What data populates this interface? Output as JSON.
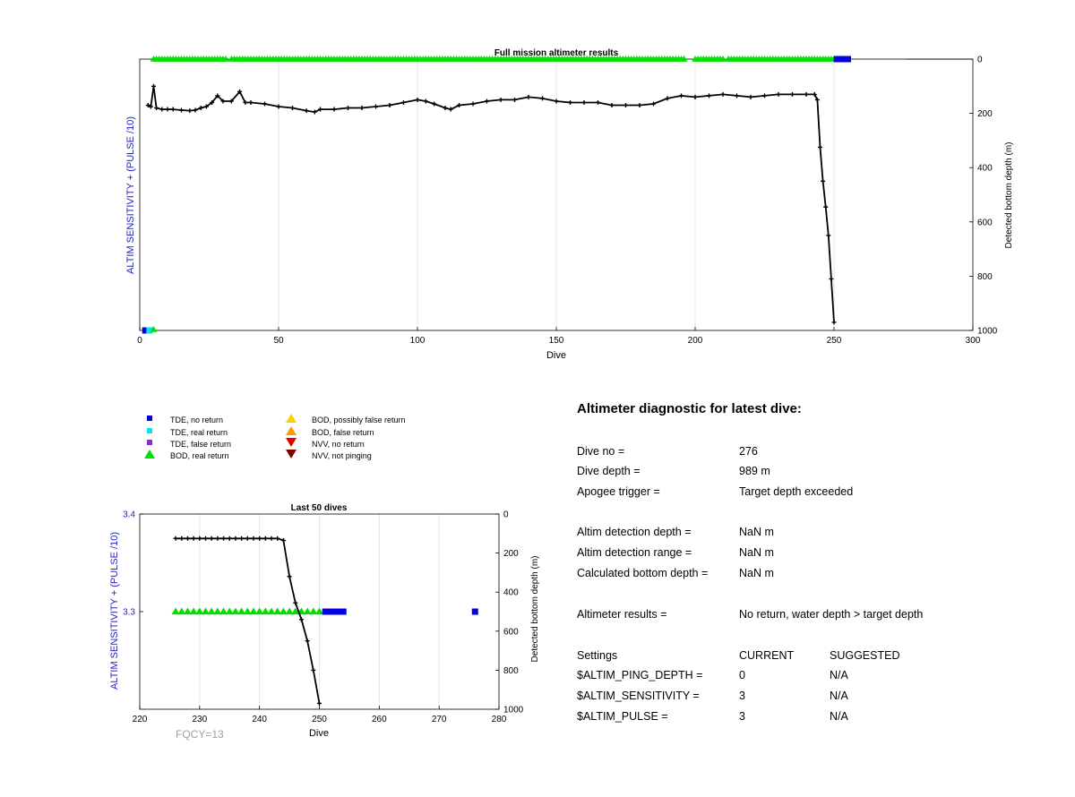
{
  "chart_data": [
    {
      "type": "line",
      "title": "Full mission altimeter results",
      "xlabel": "Dive",
      "ylabel_left": "ALTIM SENSITIVITY + (PULSE /10)",
      "ylabel_right": "Detected bottom depth (m)",
      "xlim": [
        0,
        300
      ],
      "xticks": [
        "0",
        "50",
        "100",
        "150",
        "200",
        "250",
        "300"
      ],
      "xtick_values": [
        0,
        50,
        100,
        150,
        200,
        250,
        300
      ],
      "y_right_lim": [
        0,
        1000
      ],
      "y_right_reversed": true,
      "y_right_ticks": [
        "0",
        "200",
        "400",
        "600",
        "800",
        "1000"
      ],
      "y_right_tick_values": [
        0,
        200,
        400,
        600,
        800,
        1000
      ],
      "grid_x": true,
      "bottom_depth": {
        "x": [
          3,
          4,
          5,
          6,
          8,
          10,
          12,
          15,
          18,
          20,
          22,
          24,
          26,
          28,
          30,
          33,
          36,
          38,
          40,
          45,
          50,
          55,
          60,
          63,
          65,
          70,
          75,
          80,
          85,
          90,
          95,
          100,
          103,
          106,
          110,
          112,
          115,
          120,
          125,
          130,
          135,
          140,
          145,
          150,
          155,
          160,
          165,
          170,
          175,
          180,
          185,
          190,
          195,
          200,
          205,
          210,
          215,
          220,
          225,
          230,
          235,
          240,
          243,
          244,
          245,
          246,
          247,
          248,
          249,
          250
        ],
        "y": [
          170,
          175,
          100,
          180,
          185,
          185,
          185,
          188,
          190,
          188,
          180,
          175,
          160,
          135,
          155,
          155,
          120,
          160,
          160,
          165,
          175,
          180,
          190,
          195,
          185,
          185,
          180,
          180,
          175,
          170,
          160,
          150,
          155,
          165,
          180,
          185,
          170,
          165,
          155,
          150,
          150,
          140,
          145,
          155,
          160,
          160,
          160,
          170,
          170,
          170,
          165,
          145,
          135,
          140,
          135,
          130,
          135,
          140,
          135,
          130,
          130,
          130,
          130,
          150,
          325,
          450,
          545,
          650,
          810,
          970
        ]
      },
      "tde_no_return_x": [
        2,
        251,
        252,
        253,
        254,
        255
      ],
      "tde_real_return_x": [
        3.5
      ],
      "bod_real_return_x": [
        5,
        6,
        7,
        8,
        9,
        10,
        11,
        12,
        13,
        14,
        15,
        16,
        17,
        18,
        19,
        20,
        21,
        22,
        23,
        24,
        25,
        26,
        27,
        28,
        29,
        30,
        31,
        33,
        34,
        35,
        36,
        37,
        38,
        39,
        40,
        41,
        42,
        43,
        44,
        45,
        46,
        47,
        48,
        49,
        50,
        51,
        52,
        53,
        54,
        55,
        56,
        57,
        58,
        59,
        60,
        61,
        62,
        63,
        64,
        65,
        66,
        67,
        68,
        69,
        70,
        71,
        72,
        73,
        74,
        75,
        76,
        77,
        78,
        79,
        80,
        81,
        82,
        83,
        84,
        85,
        86,
        87,
        88,
        89,
        90,
        91,
        92,
        93,
        94,
        95,
        96,
        97,
        98,
        99,
        100,
        101,
        102,
        103,
        104,
        105,
        106,
        107,
        108,
        109,
        110,
        111,
        112,
        113,
        114,
        115,
        116,
        117,
        118,
        119,
        120,
        121,
        122,
        123,
        124,
        125,
        126,
        127,
        128,
        129,
        130,
        131,
        132,
        133,
        134,
        135,
        136,
        137,
        138,
        139,
        140,
        141,
        142,
        143,
        144,
        145,
        146,
        147,
        148,
        149,
        150,
        151,
        152,
        153,
        154,
        155,
        156,
        157,
        158,
        159,
        160,
        161,
        162,
        163,
        164,
        165,
        166,
        167,
        168,
        169,
        170,
        171,
        172,
        173,
        174,
        175,
        176,
        177,
        178,
        179,
        180,
        181,
        182,
        183,
        184,
        185,
        186,
        187,
        188,
        189,
        190,
        191,
        192,
        193,
        194,
        195,
        196,
        200,
        201,
        202,
        203,
        204,
        205,
        206,
        207,
        208,
        209,
        210,
        212,
        213,
        214,
        215,
        216,
        217,
        218,
        219,
        220,
        221,
        222,
        223,
        224,
        225,
        226,
        227,
        228,
        229,
        230,
        231,
        232,
        233,
        234,
        235,
        236,
        237,
        238,
        239,
        240,
        241,
        242,
        243,
        244,
        245,
        246,
        247,
        248,
        249,
        250
      ],
      "bod_real_return_bottom_x": [
        5
      ]
    },
    {
      "type": "line",
      "title": "Last 50 dives",
      "xlabel": "Dive",
      "ylabel_left": "ALTIM SENSITIVITY + (PULSE /10)",
      "ylabel_right": "Detected bottom depth (m)",
      "xlim": [
        220,
        280
      ],
      "xticks": [
        "220",
        "230",
        "240",
        "250",
        "260",
        "270",
        "280"
      ],
      "xtick_values": [
        220,
        230,
        240,
        250,
        260,
        270,
        280
      ],
      "y_left_lim": [
        3.2,
        3.4
      ],
      "y_left_ticks": [
        "3.3",
        "3.4"
      ],
      "y_left_tick_values": [
        3.3,
        3.4
      ],
      "y_right_lim": [
        0,
        1000
      ],
      "y_right_reversed": true,
      "y_right_ticks": [
        "0",
        "200",
        "400",
        "600",
        "800",
        "1000"
      ],
      "y_right_tick_values": [
        0,
        200,
        400,
        600,
        800,
        1000
      ],
      "grid_x": true,
      "bottom_depth": {
        "x": [
          226,
          227,
          228,
          229,
          230,
          231,
          232,
          233,
          234,
          235,
          236,
          237,
          238,
          239,
          240,
          241,
          242,
          243,
          244,
          245,
          246,
          247,
          248,
          249,
          250
        ],
        "y": [
          125,
          125,
          125,
          125,
          125,
          125,
          125,
          125,
          125,
          125,
          125,
          125,
          125,
          125,
          125,
          125,
          125,
          125,
          135,
          320,
          455,
          540,
          650,
          800,
          970
        ]
      },
      "bod_real_return": {
        "x": [
          226,
          227,
          228,
          229,
          230,
          231,
          232,
          233,
          234,
          235,
          236,
          237,
          238,
          239,
          240,
          241,
          242,
          243,
          244,
          245,
          246,
          247,
          248,
          249,
          250
        ],
        "y": 3.3
      },
      "tde_no_return": {
        "x": [
          251,
          252,
          253,
          254,
          276
        ],
        "y": 3.3
      },
      "footer_label": "FQCY=13"
    }
  ],
  "legend": {
    "items": [
      {
        "label": "TDE, no return",
        "color": "#0000e0",
        "symbol": "square"
      },
      {
        "label": "TDE, real return",
        "color": "#00e5ee",
        "symbol": "square"
      },
      {
        "label": "TDE, false return",
        "color": "#8a2be2",
        "symbol": "square"
      },
      {
        "label": "BOD, real return",
        "color": "#00e000",
        "symbol": "triangle-up"
      },
      {
        "label": "BOD, possibly false return",
        "color": "#ffd000",
        "symbol": "triangle-up"
      },
      {
        "label": "BOD, false return",
        "color": "#ff9900",
        "symbol": "triangle-up"
      },
      {
        "label": "NVV, no return",
        "color": "#e00000",
        "symbol": "triangle-down"
      },
      {
        "label": "NVV, not pinging",
        "color": "#800000",
        "symbol": "triangle-down"
      }
    ]
  },
  "diagnostic": {
    "title": "Altimeter diagnostic for latest dive:",
    "rows": [
      {
        "label": "Dive no =",
        "value": "276"
      },
      {
        "label": "Dive depth =",
        "value": "989 m"
      },
      {
        "label": "Apogee trigger =",
        "value": "Target depth exceeded"
      },
      {
        "label": "Altim detection depth =",
        "value": "NaN m"
      },
      {
        "label": "Altim detection range =",
        "value": "NaN m"
      },
      {
        "label": "Calculated bottom depth =",
        "value": "NaN m"
      },
      {
        "label": "Altimeter results =",
        "value": "No return, water depth > target depth"
      }
    ],
    "settings_header": {
      "label": "Settings",
      "current": "CURRENT",
      "suggested": "SUGGESTED"
    },
    "settings": [
      {
        "label": "$ALTIM_PING_DEPTH =",
        "current": "0",
        "suggested": "N/A"
      },
      {
        "label": "$ALTIM_SENSITIVITY =",
        "current": "3",
        "suggested": "N/A"
      },
      {
        "label": "$ALTIM_PULSE =",
        "current": "3",
        "suggested": "N/A"
      }
    ]
  },
  "colors": {
    "axis_label_blue": "#1f1fbf",
    "line": "#000000",
    "grid": "#e0e0e0"
  }
}
